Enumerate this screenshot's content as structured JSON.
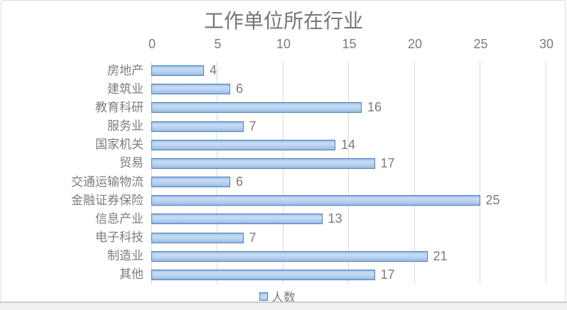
{
  "chart_data": {
    "type": "bar",
    "orientation": "horizontal",
    "title": "工作单位所在行业",
    "categories": [
      "房地产",
      "建筑业",
      "教育科研",
      "服务业",
      "国家机关",
      "贸易",
      "交通运输物流",
      "金融证券保险",
      "信息产业",
      "电子科技",
      "制造业",
      "其他"
    ],
    "values": [
      4,
      6,
      16,
      7,
      14,
      17,
      6,
      25,
      13,
      7,
      21,
      17
    ],
    "series_name": "人数",
    "xlim": [
      0,
      30
    ],
    "xticks": [
      0,
      5,
      10,
      15,
      20,
      25,
      30
    ],
    "axis_position": "top",
    "grid": true,
    "legend_position": "bottom",
    "colors": {
      "bar_fill": "#bdd4ef",
      "bar_border": "#4d80bd",
      "gridline": "#d9d9d9",
      "text": "#7a7b7d",
      "title": "#747678"
    }
  }
}
